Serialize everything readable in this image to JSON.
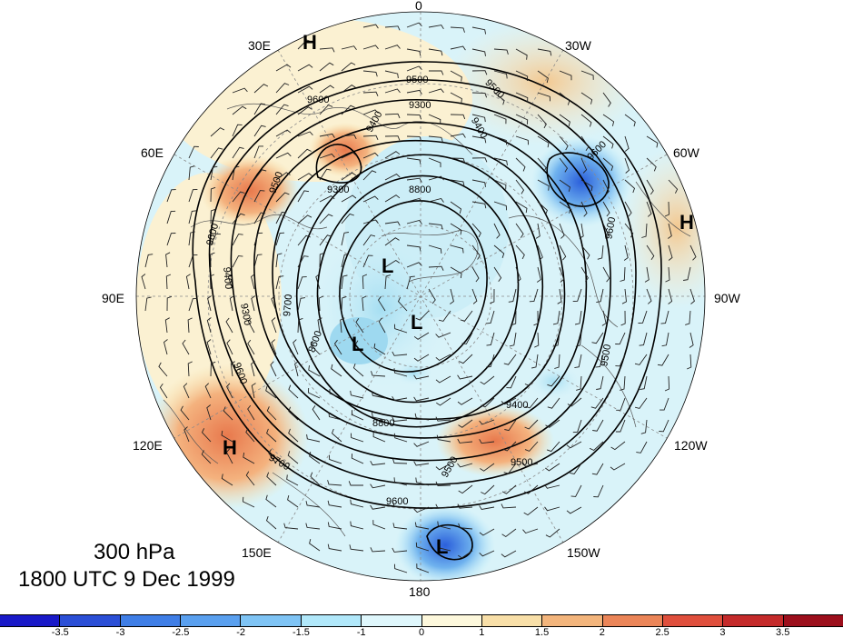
{
  "map": {
    "level": "300 hPa",
    "valid_time": "1800 UTC 9 Dec 1999",
    "longitude_labels": {
      "lon_0": "0",
      "lon_30w": "30W",
      "lon_60w": "60W",
      "lon_90w": "90W",
      "lon_120w": "120W",
      "lon_150w": "150W",
      "lon_180": "180",
      "lon_150e": "150E",
      "lon_120e": "120E",
      "lon_90e": "90E",
      "lon_60e": "60E",
      "lon_30e": "30E"
    },
    "pressure_centers": {
      "h_north_atlantic_label": "H",
      "h_east_america_label": "H",
      "h_siberia_label": "H",
      "l_arctic_label": "L",
      "l_pole_label": "L",
      "l_siberia_label": "L",
      "l_pacific_label": "L"
    },
    "contour_labels": {
      "c1": "9500",
      "c2": "9300",
      "c3": "9600",
      "c4": "9400",
      "c5": "9500",
      "c6": "9400",
      "c7": "8800",
      "c8": "9600",
      "c9": "9300",
      "c10": "9500",
      "c11": "9600",
      "c12": "9300",
      "c13": "9700",
      "c14": "9400",
      "c15": "8600",
      "c16": "9600",
      "c17": "9600",
      "c18": "9500",
      "c19": "8800",
      "c20": "9700",
      "c21": "9500",
      "c22": "9400",
      "c23": "9600",
      "c24": "9500"
    },
    "contour_interval_m": 100,
    "colors": {
      "background": "#ffffff",
      "ocean_shading": "#cfeff7",
      "positive_light": "#fbf3d4",
      "positive_mid": "#f4c98f",
      "positive_strong": "#e8794d",
      "negative_light": "#d6f3fa",
      "negative_mid": "#a5def2",
      "negative_strong": "#3a78e0"
    }
  },
  "colorbar": {
    "tick_labels": [
      "-3.5",
      "-3",
      "-2.5",
      "-2",
      "-1.5",
      "-1",
      "0",
      "1",
      "1.5",
      "2",
      "2.5",
      "3",
      "3.5"
    ],
    "colors": [
      "#1919c8",
      "#2b4fd6",
      "#3f7ee6",
      "#5aa0ef",
      "#7fc4f5",
      "#b1e8fa",
      "#dff7fc",
      "#fdf8dc",
      "#f8dfa8",
      "#f3b57c",
      "#eb8558",
      "#df4f3c",
      "#c42a2a",
      "#9c0f1c"
    ]
  }
}
